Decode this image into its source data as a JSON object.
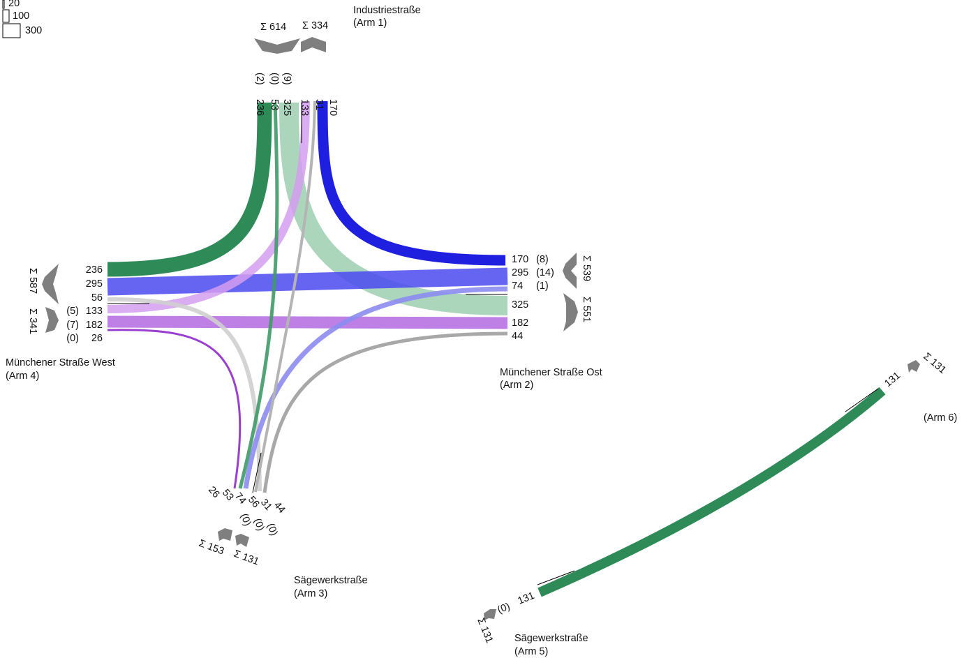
{
  "colors": {
    "green_dark": "#2e8b57",
    "green_light": "#9ccfb0",
    "blue": "#1f1fe0",
    "blue_mid": "#4a4af0",
    "blue_light": "#8c8cf0",
    "purple": "#9a3fd0",
    "purple_light": "#d49ef0",
    "purple_mid": "#c07ae8",
    "gray": "#a8a8a8",
    "gray_light": "#cfcfcf",
    "chevron": "#7f7f7f"
  },
  "legend": [
    "20",
    "100",
    "300"
  ],
  "arms": {
    "arm1": {
      "name": "Industriestraße",
      "code": "(Arm 1)",
      "sum_in": "Σ 614",
      "sum_out": "Σ 334",
      "values": [
        "236",
        "53",
        "325",
        "133",
        "31",
        "170"
      ],
      "heavy": [
        "(2)",
        "(0)",
        "(9)"
      ]
    },
    "arm2": {
      "name": "Münchener Straße Ost",
      "code": "(Arm 2)",
      "sum_out": "Σ 539",
      "sum_in": "Σ 551",
      "values": [
        "170",
        "295",
        "74",
        "325",
        "182",
        "44"
      ],
      "heavy": [
        "(8)",
        "(14)",
        "(1)"
      ]
    },
    "arm3": {
      "name": "Sägewerkstraße",
      "code": "(Arm 3)",
      "sum_in": "Σ 153",
      "sum_out": "Σ 131",
      "values": [
        "26",
        "53",
        "74",
        "56",
        "31",
        "44"
      ],
      "heavy": [
        "(0)",
        "(0)",
        "(0)"
      ]
    },
    "arm4": {
      "name": "Münchener Straße West",
      "code": "(Arm 4)",
      "sum_out": "Σ 587",
      "sum_in": "Σ 341",
      "values": [
        "236",
        "295",
        "56",
        "133",
        "182",
        "26"
      ],
      "heavy": [
        "(5)",
        "(7)",
        "(0)"
      ]
    },
    "arm5": {
      "name": "Sägewerkstraße",
      "code": "(Arm 5)",
      "sum": "Σ 131",
      "value": "131",
      "heavy": "(0)"
    },
    "arm6": {
      "code": "(Arm 6)",
      "sum": "Σ 131",
      "value": "131"
    }
  }
}
